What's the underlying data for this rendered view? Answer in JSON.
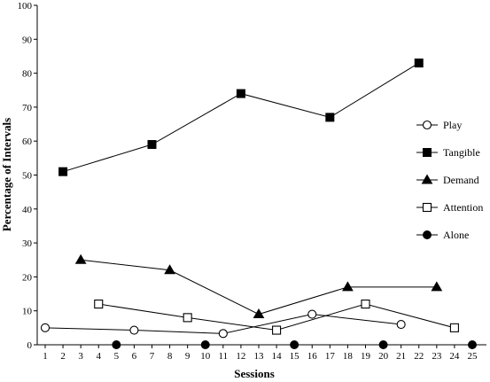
{
  "chart_data": {
    "type": "line",
    "title": "",
    "xlabel": "Sessions",
    "ylabel": "Percentage of Intervals",
    "xlim": [
      1,
      25
    ],
    "ylim": [
      0,
      100
    ],
    "x_ticks": [
      "1",
      "2",
      "3",
      "4",
      "5",
      "6",
      "7",
      "8",
      "9",
      "10",
      "11",
      "12",
      "13",
      "14",
      "15",
      "16",
      "17",
      "18",
      "19",
      "20",
      "21",
      "22",
      "23",
      "24",
      "25"
    ],
    "y_ticks": [
      "0",
      "10",
      "20",
      "30",
      "40",
      "50",
      "60",
      "70",
      "80",
      "90",
      "100"
    ],
    "grid": false,
    "legend_position": "right",
    "series": [
      {
        "name": "Play",
        "marker": "circle-open",
        "points": [
          [
            1,
            5
          ],
          [
            6,
            4.3
          ],
          [
            11,
            3.3
          ],
          [
            16,
            9
          ],
          [
            21,
            6
          ]
        ]
      },
      {
        "name": "Tangible",
        "marker": "square-filled",
        "points": [
          [
            2,
            51
          ],
          [
            7,
            59
          ],
          [
            12,
            74
          ],
          [
            17,
            67
          ],
          [
            22,
            83
          ]
        ]
      },
      {
        "name": "Demand",
        "marker": "triangle-filled",
        "points": [
          [
            3,
            25
          ],
          [
            8,
            22
          ],
          [
            13,
            9
          ],
          [
            18,
            17
          ],
          [
            23,
            17
          ]
        ]
      },
      {
        "name": "Attention",
        "marker": "square-open",
        "points": [
          [
            4,
            12
          ],
          [
            9,
            8
          ],
          [
            14,
            4.3
          ],
          [
            19,
            12
          ],
          [
            24,
            5
          ]
        ]
      },
      {
        "name": "Alone",
        "marker": "circle-filled",
        "points": [
          [
            5,
            0
          ],
          [
            10,
            0
          ],
          [
            15,
            0
          ],
          [
            20,
            0
          ],
          [
            25,
            0
          ]
        ]
      }
    ]
  }
}
